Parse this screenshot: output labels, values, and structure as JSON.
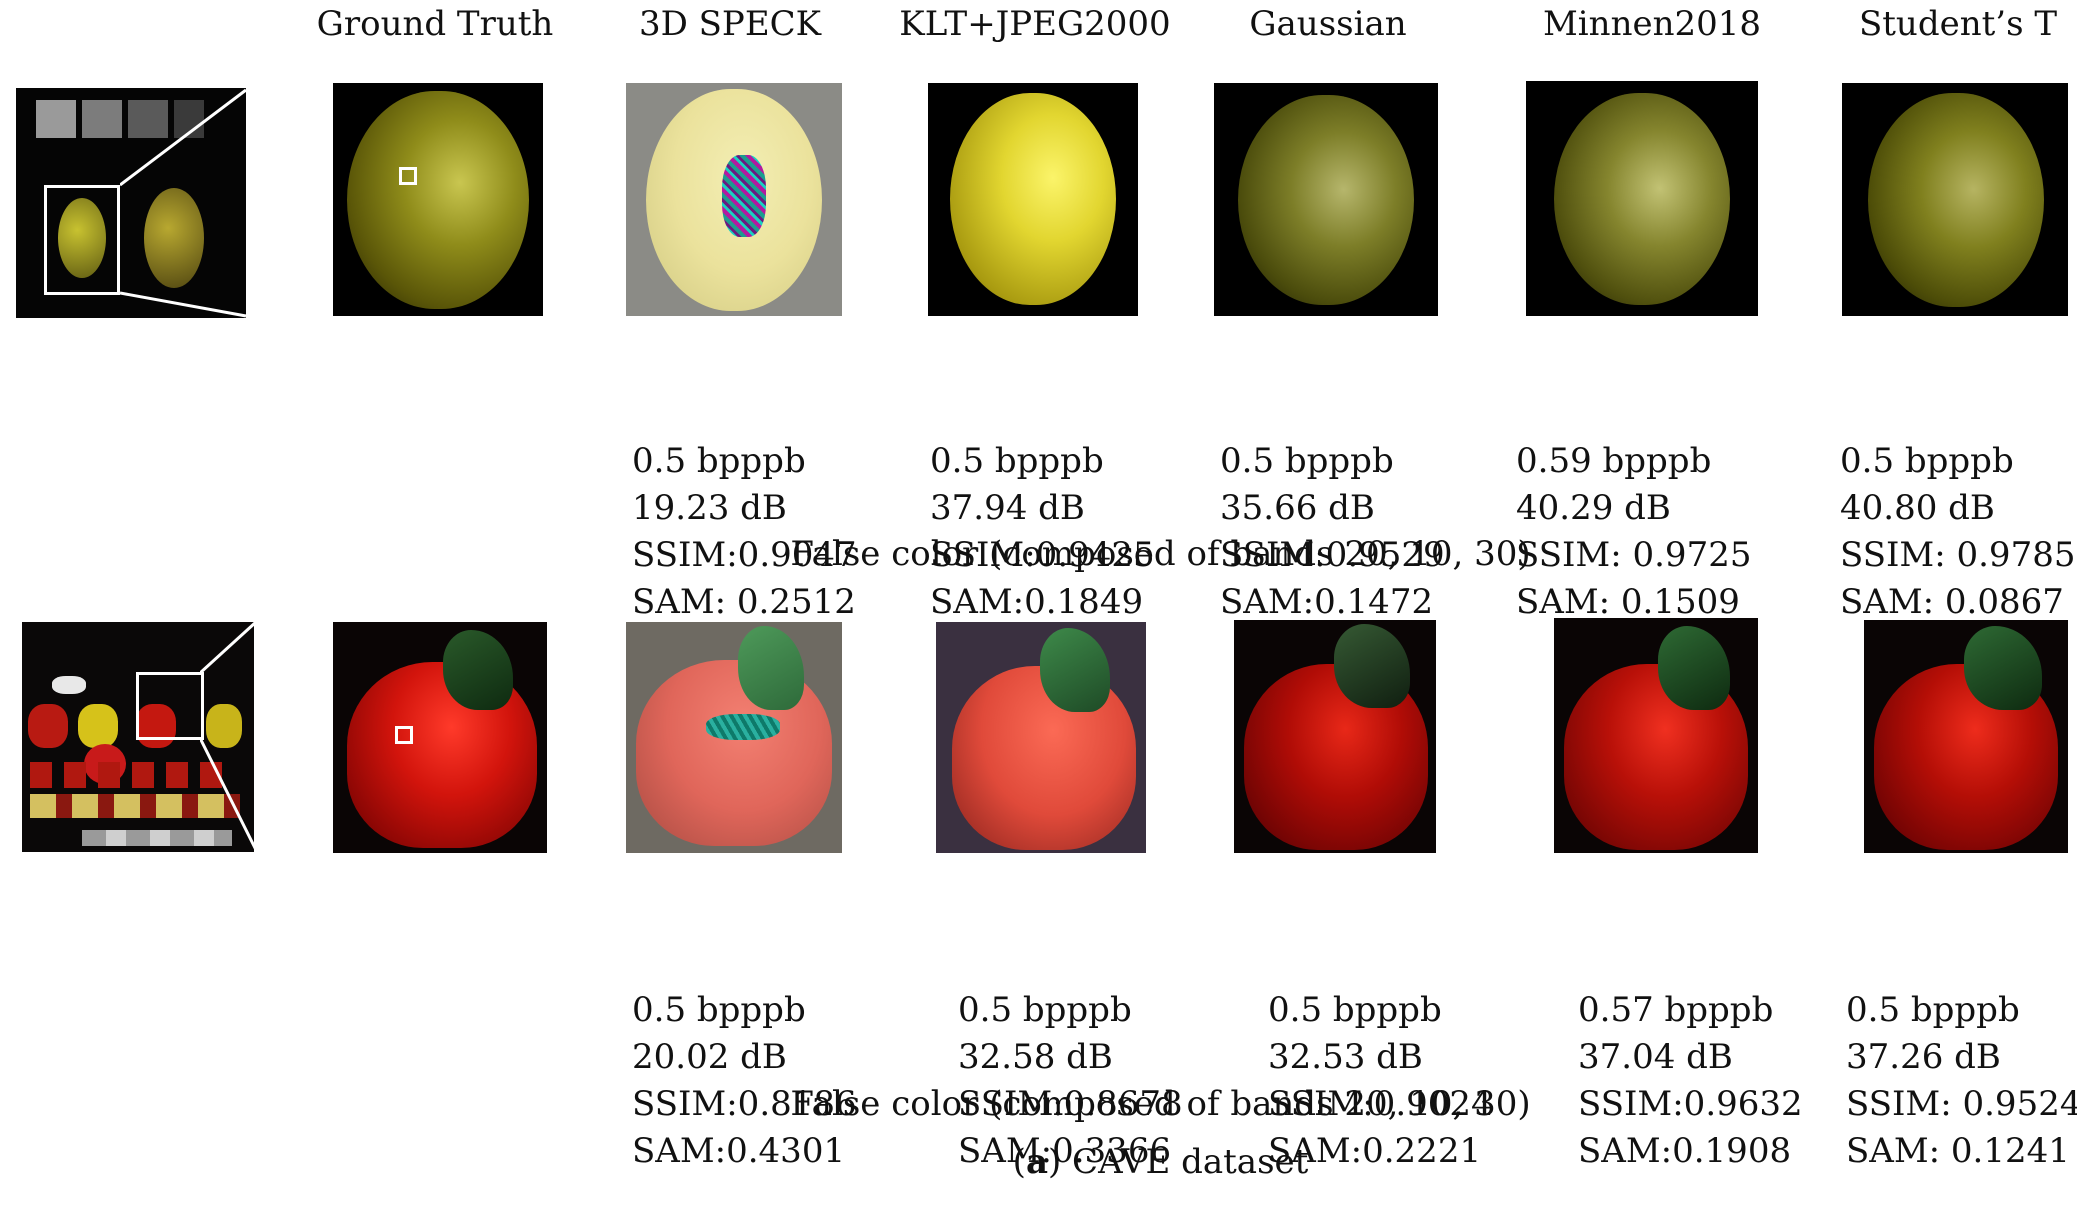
{
  "headers": [
    "Ground Truth",
    "3D SPECK",
    "KLT+JPEG2000",
    "Gaussian",
    "Minnen2018",
    "Student’s T"
  ],
  "row1": {
    "metrics": [
      [
        "0.5 bpppb",
        "19.23 dB",
        "SSIM:0.9047",
        "SAM: 0.2512"
      ],
      [
        "0.5 bpppb",
        "37.94 dB",
        "SSIM:0.9425",
        "SAM:0.1849"
      ],
      [
        "0.5 bpppb",
        "35.66 dB",
        "SSIM:0.9529",
        "SAM:0.1472"
      ],
      [
        "0.59 bpppb",
        "40.29 dB",
        "SSIM: 0.9725",
        "SAM: 0.1509"
      ],
      [
        "0.5 bpppb",
        "40.80 dB",
        "SSIM: 0.9785",
        "SAM: 0.0867"
      ]
    ],
    "caption": "False color (composed of bands 20, 10, 30)"
  },
  "row2": {
    "metrics": [
      [
        "0.5 bpppb",
        "20.02 dB",
        "SSIM:0.8186",
        "SAM:0.4301"
      ],
      [
        "0.5 bpppb",
        "32.58 dB",
        "SSIM:0.8678",
        "SAM:0.3366"
      ],
      [
        "0.5 bpppb",
        "32.53 dB",
        "SSIM:0.9024",
        "SAM:0.2221"
      ],
      [
        "0.57 bpppb",
        "37.04 dB",
        "SSIM:0.9632",
        "SAM:0.1908"
      ],
      [
        "0.5 bpppb",
        "37.26 dB",
        "SSIM: 0.9524",
        "SAM: 0.1241"
      ]
    ],
    "caption": "False color (composed of bands 20, 10, 30)"
  },
  "figure_label": "a",
  "figure_caption": " CAVE dataset"
}
